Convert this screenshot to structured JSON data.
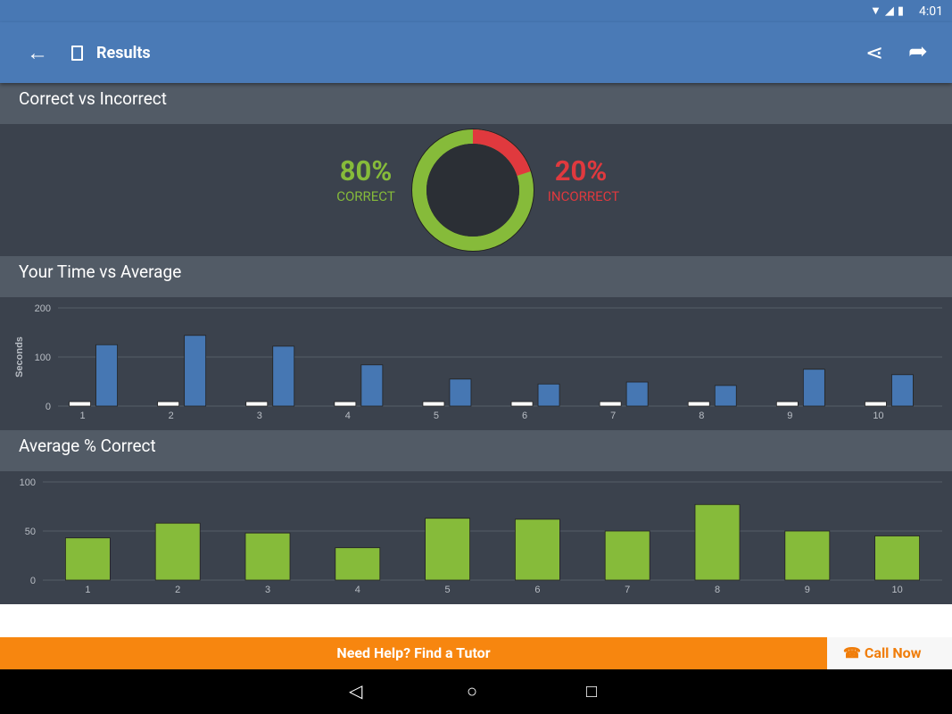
{
  "status": {
    "time": "4:01",
    "icons": [
      "wifi-icon",
      "signal-icon",
      "battery-icon"
    ]
  },
  "appbar": {
    "title": "Results",
    "back_icon": "arrow-left-icon",
    "share_icon": "share-icon",
    "forward_icon": "forward-icon"
  },
  "section1": {
    "title": "Correct vs Incorrect",
    "correct_pct": "80%",
    "correct_label": "CORRECT",
    "incorrect_pct": "20%",
    "incorrect_label": "INCORRECT",
    "correct_color": "#86bb3a",
    "incorrect_color": "#e0393e"
  },
  "section2": {
    "title": "Your Time vs Average"
  },
  "section3": {
    "title": "Average % Correct"
  },
  "chart_data": [
    {
      "type": "bar",
      "ylabel": "Seconds",
      "ylim": [
        0,
        200
      ],
      "yticks": [
        "0",
        "100",
        "200"
      ],
      "categories": [
        "1",
        "2",
        "3",
        "4",
        "5",
        "6",
        "7",
        "8",
        "9",
        "10"
      ],
      "series": [
        {
          "color": "#ffffff",
          "values": [
            9,
            9,
            9,
            9,
            9,
            9,
            9,
            9,
            9,
            9
          ]
        },
        {
          "color": "#4677b3",
          "values": [
            125,
            144,
            122,
            84,
            55,
            45,
            49,
            42,
            75,
            64
          ]
        }
      ],
      "grid": true
    },
    {
      "type": "bar",
      "ylim": [
        0,
        100
      ],
      "yticks": [
        "0",
        "50",
        "100"
      ],
      "categories": [
        "1",
        "2",
        "3",
        "4",
        "5",
        "6",
        "7",
        "8",
        "9",
        "10"
      ],
      "series": [
        {
          "color": "#86bb3a",
          "values": [
            43,
            58,
            48,
            33,
            63,
            62,
            50,
            77,
            50,
            45
          ]
        }
      ],
      "grid": true
    }
  ],
  "footer": {
    "help": "Need Help? Find a Tutor",
    "call": "Call Now",
    "call_icon": "phone-icon"
  },
  "navbar": {
    "back": "back-icon",
    "home": "home-icon",
    "recents": "recents-icon"
  }
}
